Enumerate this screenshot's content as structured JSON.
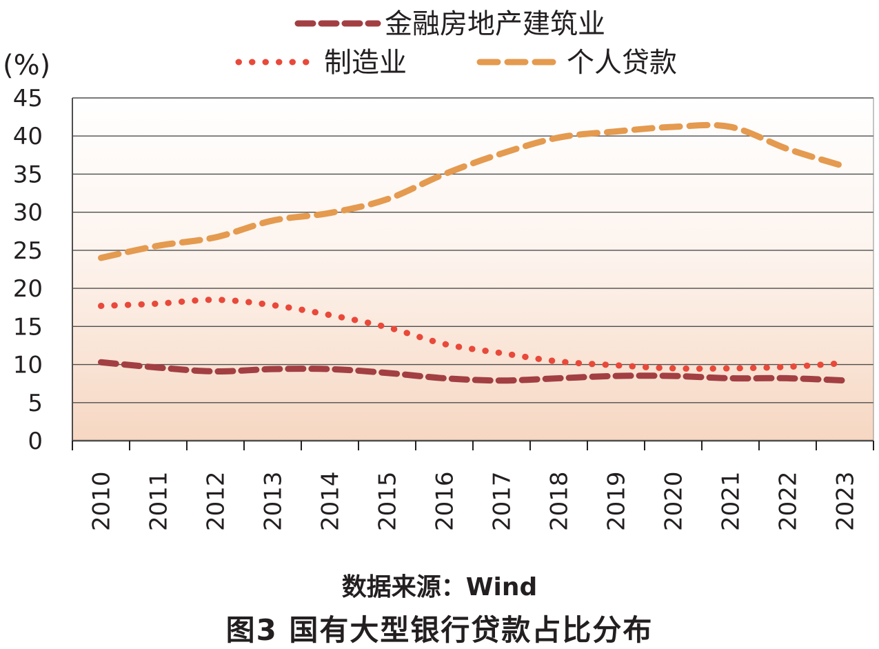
{
  "chart_data": {
    "type": "line",
    "title": "国有大型银行贷款占比分布",
    "figure_label": "图3",
    "source": "数据来源：Wind",
    "ylabel": "(%)",
    "xlabel": "",
    "ylim": [
      0,
      45
    ],
    "yticks": [
      "0",
      "5",
      "10",
      "15",
      "20",
      "25",
      "30",
      "35",
      "40",
      "45"
    ],
    "categories": [
      "2010",
      "2011",
      "2012",
      "2013",
      "2014",
      "2015",
      "2016",
      "2017",
      "2018",
      "2019",
      "2020",
      "2021",
      "2022",
      "2023"
    ],
    "grid": true,
    "legend_position": "top",
    "series": [
      {
        "name": "金融房地产建筑业",
        "color": "#a23f43",
        "style": "dashed",
        "values": [
          10.3,
          9.6,
          9.1,
          9.4,
          9.4,
          8.9,
          8.2,
          7.9,
          8.2,
          8.5,
          8.5,
          8.2,
          8.2,
          7.9
        ]
      },
      {
        "name": "制造业",
        "color": "#e8493a",
        "style": "dotted",
        "values": [
          17.7,
          18.0,
          18.5,
          17.8,
          16.5,
          14.9,
          12.7,
          11.5,
          10.4,
          9.9,
          9.5,
          9.5,
          9.7,
          10.2
        ]
      },
      {
        "name": "个人贷款",
        "color": "#e49a4f",
        "style": "dashed",
        "values": [
          24.0,
          25.6,
          26.7,
          28.9,
          29.9,
          31.7,
          35.0,
          37.7,
          39.8,
          40.6,
          41.2,
          41.2,
          38.3,
          36.0
        ]
      }
    ]
  }
}
